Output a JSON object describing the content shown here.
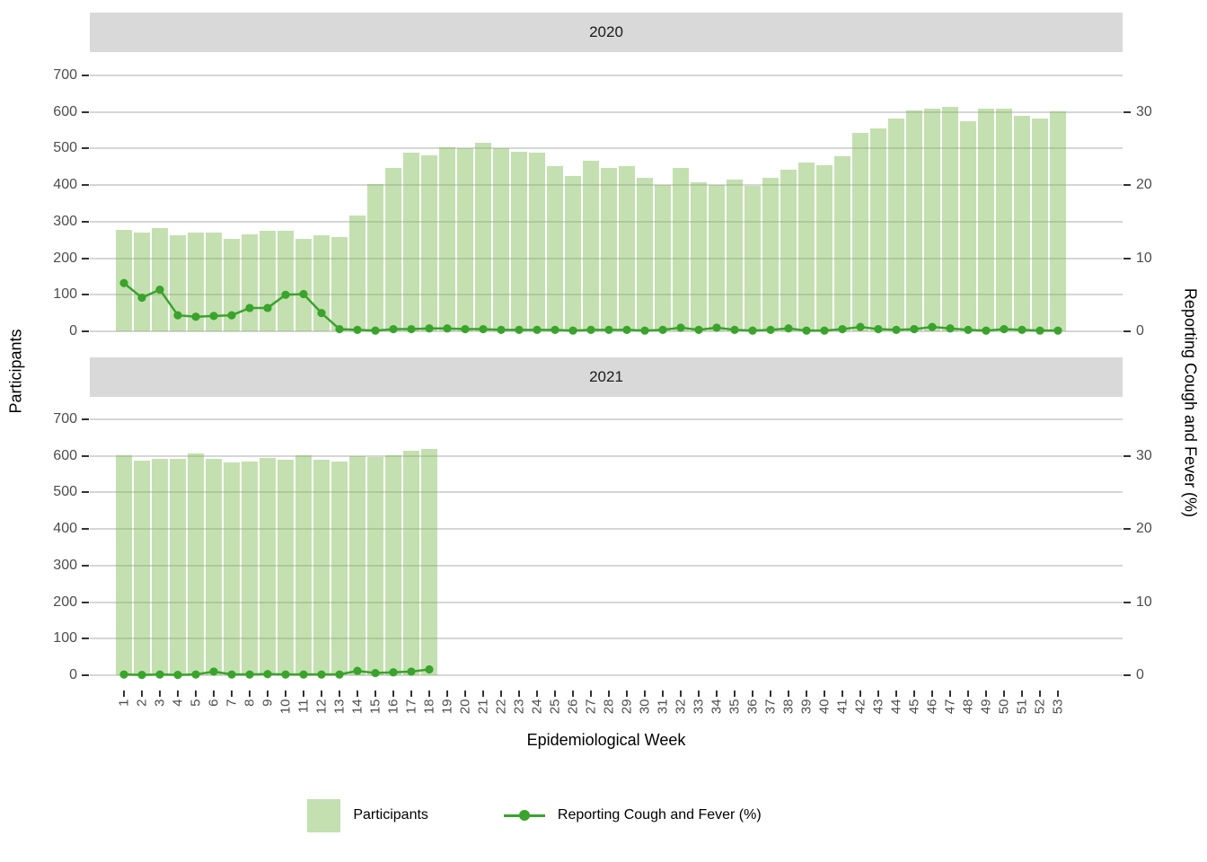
{
  "strips": [
    "2020",
    "2021"
  ],
  "axes": {
    "left_title": "Participants",
    "right_title": "Reporting Cough and Fever (%)",
    "x_title": "Epidemiological Week",
    "left_breaks": [
      0,
      100,
      200,
      300,
      400,
      500,
      600,
      700
    ],
    "left_range": [
      0,
      700
    ],
    "right_breaks": [
      0,
      10,
      20,
      30
    ],
    "right_range": [
      0,
      35
    ],
    "x_breaks": [
      1,
      2,
      3,
      4,
      5,
      6,
      7,
      8,
      9,
      10,
      11,
      12,
      13,
      14,
      15,
      16,
      17,
      18,
      19,
      20,
      21,
      22,
      23,
      24,
      25,
      26,
      27,
      28,
      29,
      30,
      31,
      32,
      33,
      34,
      35,
      36,
      37,
      38,
      39,
      40,
      41,
      42,
      43,
      44,
      45,
      46,
      47,
      48,
      49,
      50,
      51,
      52,
      53
    ]
  },
  "legend": {
    "items": [
      {
        "label": "Participants",
        "type": "fill"
      },
      {
        "label": "Reporting Cough and Fever (%)",
        "type": "line-point"
      }
    ]
  },
  "colors": {
    "bar_fill": "rgba(124,186,81,0.45)",
    "line": "#3aa32c",
    "strip_bg": "#d9d9d9",
    "gridline": "#d6d6d6",
    "axis_text": "#4d4d4d",
    "tick": "#333333"
  },
  "chart_data": [
    {
      "type": "bar",
      "facet": "2020",
      "x": [
        1,
        2,
        3,
        4,
        5,
        6,
        7,
        8,
        9,
        10,
        11,
        12,
        13,
        14,
        15,
        16,
        17,
        18,
        19,
        20,
        21,
        22,
        23,
        24,
        25,
        26,
        27,
        28,
        29,
        30,
        31,
        32,
        33,
        34,
        35,
        36,
        37,
        38,
        39,
        40,
        41,
        42,
        43,
        44,
        45,
        46,
        47,
        48,
        49,
        50,
        51,
        52,
        53
      ],
      "series": [
        {
          "name": "Participants",
          "axis": "left",
          "values": [
            278,
            270,
            283,
            262,
            271,
            270,
            252,
            265,
            274,
            275,
            252,
            264,
            258,
            317,
            403,
            447,
            488,
            481,
            503,
            501,
            515,
            501,
            491,
            488,
            453,
            426,
            466,
            447,
            453,
            420,
            401,
            447,
            408,
            400,
            415,
            398,
            420,
            443,
            462,
            455,
            478,
            544,
            556,
            583,
            604,
            610,
            615,
            575,
            608,
            608,
            589,
            581,
            601
          ]
        },
        {
          "name": "Reporting Cough and Fever (%)",
          "axis": "right",
          "values": [
            6.6,
            4.6,
            5.7,
            2.2,
            2.0,
            2.1,
            2.2,
            3.2,
            3.2,
            5.0,
            5.1,
            2.5,
            0.3,
            0.2,
            0.1,
            0.3,
            0.3,
            0.4,
            0.4,
            0.3,
            0.3,
            0.2,
            0.2,
            0.2,
            0.2,
            0.1,
            0.2,
            0.2,
            0.2,
            0.1,
            0.2,
            0.5,
            0.2,
            0.5,
            0.2,
            0.1,
            0.2,
            0.4,
            0.1,
            0.1,
            0.3,
            0.6,
            0.3,
            0.2,
            0.3,
            0.6,
            0.4,
            0.2,
            0.1,
            0.3,
            0.2,
            0.1,
            0.1
          ]
        }
      ],
      "ylabel_left": "Participants",
      "ylabel_right": "Reporting Cough and Fever (%)",
      "grid": true,
      "legend_position": "bottom"
    },
    {
      "type": "bar",
      "facet": "2021",
      "x": [
        1,
        2,
        3,
        4,
        5,
        6,
        7,
        8,
        9,
        10,
        11,
        12,
        13,
        14,
        15,
        16,
        17,
        18
      ],
      "series": [
        {
          "name": "Participants",
          "axis": "left",
          "values": [
            601,
            588,
            593,
            593,
            607,
            593,
            582,
            585,
            595,
            590,
            601,
            590,
            585,
            599,
            597,
            603,
            615,
            619
          ]
        },
        {
          "name": "Reporting Cough and Fever (%)",
          "axis": "right",
          "values": [
            0.1,
            0.05,
            0.1,
            0.05,
            0.1,
            0.5,
            0.1,
            0.1,
            0.15,
            0.1,
            0.1,
            0.1,
            0.1,
            0.6,
            0.3,
            0.4,
            0.5,
            0.8
          ]
        }
      ],
      "ylabel_left": "Participants",
      "ylabel_right": "Reporting Cough and Fever (%)",
      "grid": true,
      "legend_position": "bottom"
    }
  ]
}
